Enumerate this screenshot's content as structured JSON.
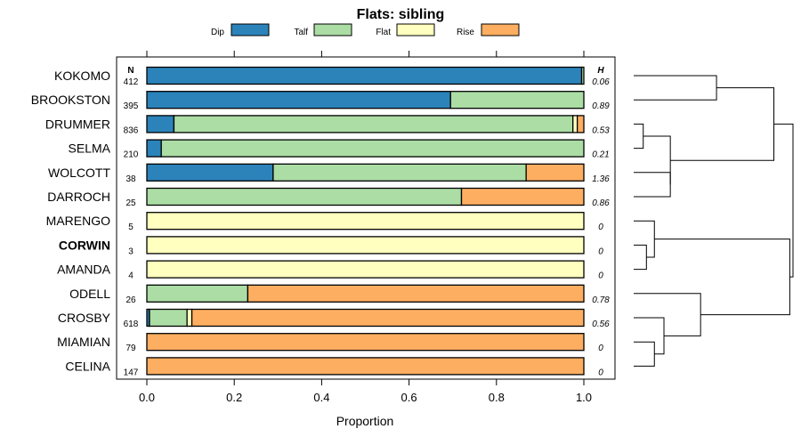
{
  "chart_data": {
    "type": "bar",
    "orientation": "horizontal",
    "stacked": true,
    "title": "Flats: sibling",
    "xlabel": "Proportion",
    "xlim": [
      0,
      1
    ],
    "x_ticks": [
      "0.0",
      "0.2",
      "0.4",
      "0.6",
      "0.8",
      "1.0"
    ],
    "x_tick_values": [
      0,
      0.2,
      0.4,
      0.6,
      0.8,
      1.0
    ],
    "n_header": "N",
    "h_header": "H",
    "legend": [
      {
        "name": "Dip",
        "color": "#2b83ba"
      },
      {
        "name": "Talf",
        "color": "#abdda4"
      },
      {
        "name": "Flat",
        "color": "#ffffbf"
      },
      {
        "name": "Rise",
        "color": "#fdae61"
      }
    ],
    "series_names": [
      "Dip",
      "Talf",
      "Flat",
      "Rise"
    ],
    "rows": [
      {
        "label": "KOKOMO",
        "n": "412",
        "h": "0.06",
        "bold": false,
        "values": [
          0.995,
          0.005,
          0,
          0
        ]
      },
      {
        "label": "BROOKSTON",
        "n": "395",
        "h": "0.89",
        "bold": false,
        "values": [
          0.695,
          0.305,
          0,
          0
        ]
      },
      {
        "label": "DRUMMER",
        "n": "836",
        "h": "0.53",
        "bold": false,
        "values": [
          0.062,
          0.913,
          0.01,
          0.015
        ]
      },
      {
        "label": "SELMA",
        "n": "210",
        "h": "0.21",
        "bold": false,
        "values": [
          0.033,
          0.967,
          0,
          0
        ]
      },
      {
        "label": "WOLCOTT",
        "n": "38",
        "h": "1.36",
        "bold": false,
        "values": [
          0.289,
          0.579,
          0,
          0.132
        ]
      },
      {
        "label": "DARROCH",
        "n": "25",
        "h": "0.86",
        "bold": false,
        "values": [
          0,
          0.72,
          0,
          0.28
        ]
      },
      {
        "label": "MARENGO",
        "n": "5",
        "h": "0",
        "bold": false,
        "values": [
          0,
          0,
          1,
          0
        ]
      },
      {
        "label": "CORWIN",
        "n": "3",
        "h": "0",
        "bold": true,
        "values": [
          0,
          0,
          1,
          0
        ]
      },
      {
        "label": "AMANDA",
        "n": "4",
        "h": "0",
        "bold": false,
        "values": [
          0,
          0,
          1,
          0
        ]
      },
      {
        "label": "ODELL",
        "n": "26",
        "h": "0.78",
        "bold": false,
        "values": [
          0,
          0.231,
          0,
          0.769
        ]
      },
      {
        "label": "CROSBY",
        "n": "618",
        "h": "0.56",
        "bold": false,
        "values": [
          0.006,
          0.086,
          0.011,
          0.897
        ]
      },
      {
        "label": "MIAMIAN",
        "n": "79",
        "h": "0",
        "bold": false,
        "values": [
          0,
          0,
          0,
          1
        ]
      },
      {
        "label": "CELINA",
        "n": "147",
        "h": "0",
        "bold": false,
        "values": [
          0,
          0,
          0,
          1
        ]
      }
    ],
    "dendrogram": {
      "leaf_order": [
        "KOKOMO",
        "BROOKSTON",
        "DRUMMER",
        "SELMA",
        "WOLCOTT",
        "DARROCH",
        "MARENGO",
        "CORWIN",
        "AMANDA",
        "ODELL",
        "CROSBY",
        "MIAMIAN",
        "CELINA"
      ],
      "merges": [
        {
          "a": "KOKOMO",
          "b": "BROOKSTON",
          "height": 0.52
        },
        {
          "a": "DRUMMER",
          "b": "SELMA",
          "height": 0.06
        },
        {
          "a": "WOLCOTT",
          "b": "DARROCH",
          "height": 0.23
        },
        {
          "a": "m1",
          "b": "m2",
          "height": 0.23
        },
        {
          "a": "m0",
          "b": "m3",
          "height": 0.88
        },
        {
          "a": "CORWIN",
          "b": "AMANDA",
          "height": 0.08
        },
        {
          "a": "MARENGO",
          "b": "m5",
          "height": 0.13
        },
        {
          "a": "MIAMIAN",
          "b": "CELINA",
          "height": 0.13
        },
        {
          "a": "CROSBY",
          "b": "m7",
          "height": 0.19
        },
        {
          "a": "ODELL",
          "b": "m8",
          "height": 0.42
        },
        {
          "a": "m6",
          "b": "m9",
          "height": 0.98
        },
        {
          "a": "m4",
          "b": "m10",
          "height": 1.0
        }
      ]
    }
  }
}
